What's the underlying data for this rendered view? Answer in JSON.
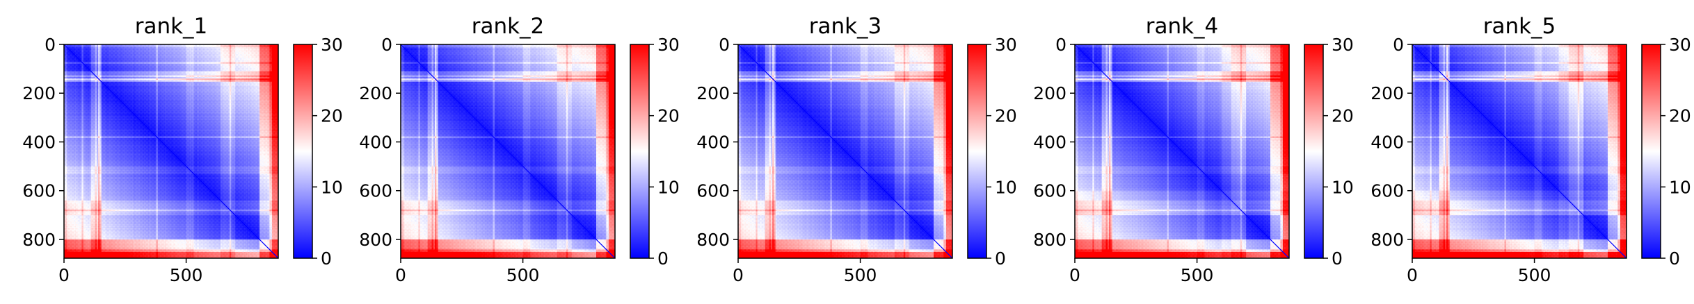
{
  "colors": {
    "low": "#0000ff",
    "mid": "#ffffff",
    "high": "#ff0000",
    "axis": "#000000"
  },
  "chart_data": [
    {
      "type": "heatmap",
      "title": "rank_1",
      "size": 877,
      "xticks": [
        0,
        500
      ],
      "yticks": [
        0,
        200,
        400,
        600,
        800
      ],
      "clim": [
        0,
        30
      ],
      "colorbar_ticks": [
        0,
        10,
        20,
        30
      ],
      "colormap": "bwr"
    },
    {
      "type": "heatmap",
      "title": "rank_2",
      "size": 877,
      "xticks": [
        0,
        500
      ],
      "yticks": [
        0,
        200,
        400,
        600,
        800
      ],
      "clim": [
        0,
        30
      ],
      "colorbar_ticks": [
        0,
        10,
        20,
        30
      ],
      "colormap": "bwr"
    },
    {
      "type": "heatmap",
      "title": "rank_3",
      "size": 877,
      "xticks": [
        0,
        500
      ],
      "yticks": [
        0,
        200,
        400,
        600,
        800
      ],
      "clim": [
        0,
        30
      ],
      "colorbar_ticks": [
        0,
        10,
        20,
        30
      ],
      "colormap": "bwr"
    },
    {
      "type": "heatmap",
      "title": "rank_4",
      "size": 877,
      "xticks": [
        0,
        500
      ],
      "yticks": [
        0,
        200,
        400,
        600,
        800
      ],
      "clim": [
        0,
        30
      ],
      "colorbar_ticks": [
        0,
        10,
        20,
        30
      ],
      "colormap": "bwr"
    },
    {
      "type": "heatmap",
      "title": "rank_5",
      "size": 877,
      "xticks": [
        0,
        500
      ],
      "yticks": [
        0,
        200,
        400,
        600,
        800
      ],
      "clim": [
        0,
        30
      ],
      "colorbar_ticks": [
        0,
        10,
        20,
        30
      ],
      "colormap": "bwr"
    }
  ]
}
